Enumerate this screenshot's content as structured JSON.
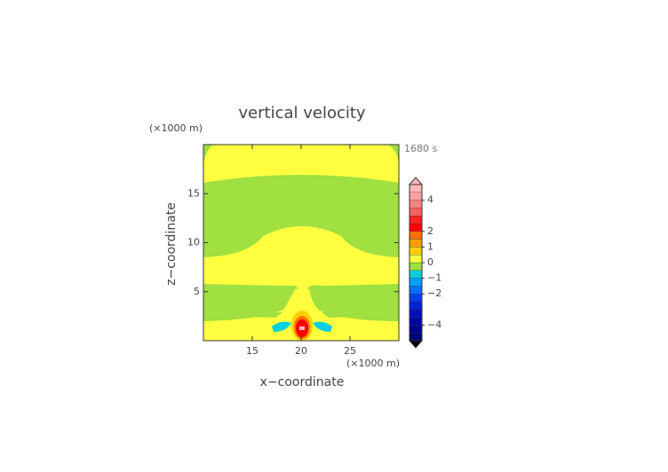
{
  "chart_data": {
    "type": "contour",
    "title": "vertical velocity",
    "x_label": "x−coordinate",
    "y_label": "z−coordinate",
    "x_unit": "(×1000 m)",
    "y_unit": "(×1000 m)",
    "time_label": "1680 s",
    "xlim": [
      10,
      30
    ],
    "xticks": [
      15,
      20,
      25
    ],
    "ylim": [
      0,
      20
    ],
    "yticks": [
      5,
      10,
      15
    ],
    "colorbar": {
      "lim": [
        -5,
        5
      ],
      "ticks": [
        {
          "value": -4,
          "label": "−4"
        },
        {
          "value": -2,
          "label": "−2"
        },
        {
          "value": -1,
          "label": "−1"
        },
        0,
        1,
        2,
        4
      ],
      "colors": [
        "#00007a",
        "#000090",
        "#0000a8",
        "#0010c0",
        "#0020d8",
        "#0040f0",
        "#0070ff",
        "#00a0ff",
        "#00d0e0",
        "#a0e040",
        "#ffff40",
        "#ffd000",
        "#ffa000",
        "#ff7000",
        "#ff0000",
        "#ff2020",
        "#ff6060",
        "#ff8080",
        "#ffa0a0",
        "#ffb8b8"
      ]
    }
  }
}
